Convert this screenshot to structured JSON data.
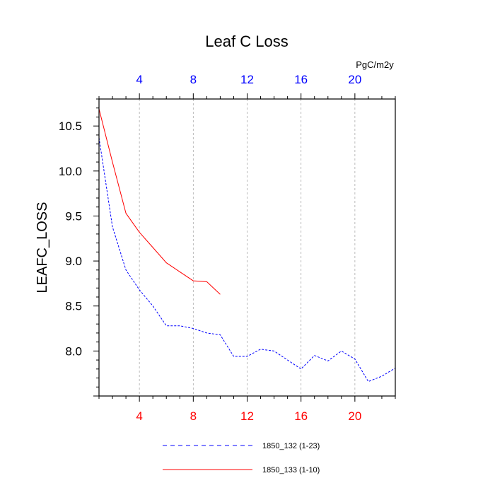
{
  "chart_data": {
    "type": "line",
    "title": "Leaf C Loss",
    "xlabel": "",
    "ylabel": "LEAFC_LOSS",
    "units_label": "PgC/m2y",
    "xlim": [
      1,
      23
    ],
    "ylim": [
      7.5,
      10.8
    ],
    "x_ticks": [
      "4",
      "8",
      "12",
      "16",
      "20"
    ],
    "x_tick_values": [
      4,
      8,
      12,
      16,
      20
    ],
    "y_ticks": [
      "8.0",
      "8.5",
      "9.0",
      "9.5",
      "10.0",
      "10.5"
    ],
    "y_tick_values": [
      8.0,
      8.5,
      9.0,
      9.5,
      10.0,
      10.5
    ],
    "grid": "x-dashed",
    "legend_position": "bottom",
    "series": [
      {
        "name": "1850_132 (1-23)",
        "color": "#0000ff",
        "dash": "dashed",
        "x": [
          1,
          2,
          3,
          4,
          5,
          6,
          7,
          8,
          9,
          10,
          11,
          12,
          13,
          14,
          15,
          16,
          17,
          18,
          19,
          20,
          21,
          22,
          23
        ],
        "values": [
          10.37,
          9.38,
          8.9,
          8.68,
          8.5,
          8.28,
          8.28,
          8.25,
          8.2,
          8.18,
          7.94,
          7.94,
          8.02,
          8.0,
          7.9,
          7.8,
          7.95,
          7.89,
          8.0,
          7.91,
          7.66,
          7.72,
          7.81
        ]
      },
      {
        "name": "1850_133 (1-10)",
        "color": "#ff0000",
        "dash": "solid",
        "x": [
          1,
          2,
          3,
          4,
          5,
          6,
          7,
          8,
          9,
          10
        ],
        "values": [
          10.69,
          10.1,
          9.53,
          9.32,
          9.15,
          8.98,
          8.88,
          8.78,
          8.77,
          8.63
        ]
      }
    ]
  }
}
